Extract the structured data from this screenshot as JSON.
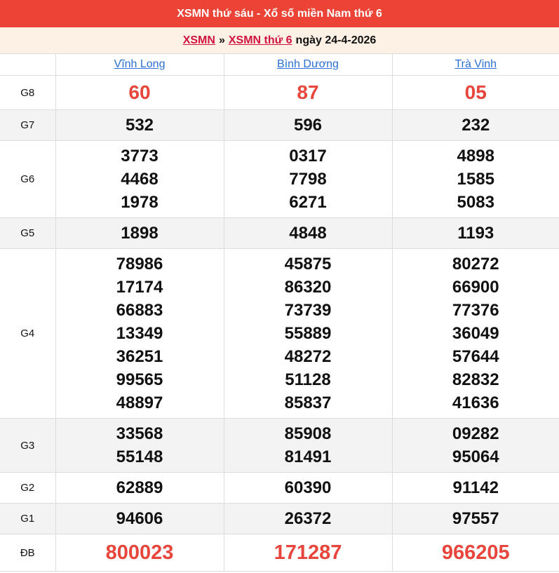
{
  "header": {
    "title": "XSMN thứ sáu - Xổ số miền Nam thứ 6"
  },
  "breadcrumb": {
    "link1": "XSMN",
    "separator": "»",
    "link2": "XSMN thứ 6",
    "date_text": "ngày 24-4-2026"
  },
  "colors": {
    "header_bg": "#eb4335",
    "breadcrumb_bg": "#fdf1e5",
    "prize_red": "#e8453c",
    "link_blue": "#2a6fcf",
    "breadcrumb_link": "#d0123f"
  },
  "provinces": [
    "Vĩnh Long",
    "Bình Dương",
    "Trà Vinh"
  ],
  "prizes": [
    {
      "label": "G8",
      "style": "red",
      "values": [
        [
          "60"
        ],
        [
          "87"
        ],
        [
          "05"
        ]
      ]
    },
    {
      "label": "G7",
      "style": "alt",
      "values": [
        [
          "532"
        ],
        [
          "596"
        ],
        [
          "232"
        ]
      ]
    },
    {
      "label": "G6",
      "style": "",
      "values": [
        [
          "3773",
          "4468",
          "1978"
        ],
        [
          "0317",
          "7798",
          "6271"
        ],
        [
          "4898",
          "1585",
          "5083"
        ]
      ]
    },
    {
      "label": "G5",
      "style": "alt",
      "values": [
        [
          "1898"
        ],
        [
          "4848"
        ],
        [
          "1193"
        ]
      ]
    },
    {
      "label": "G4",
      "style": "",
      "values": [
        [
          "78986",
          "17174",
          "66883",
          "13349",
          "36251",
          "99565",
          "48897"
        ],
        [
          "45875",
          "86320",
          "73739",
          "55889",
          "48272",
          "51128",
          "85837"
        ],
        [
          "80272",
          "66900",
          "77376",
          "36049",
          "57644",
          "82832",
          "41636"
        ]
      ]
    },
    {
      "label": "G3",
      "style": "alt",
      "values": [
        [
          "33568",
          "55148"
        ],
        [
          "85908",
          "81491"
        ],
        [
          "09282",
          "95064"
        ]
      ]
    },
    {
      "label": "G2",
      "style": "",
      "values": [
        [
          "62889"
        ],
        [
          "60390"
        ],
        [
          "91142"
        ]
      ]
    },
    {
      "label": "G1",
      "style": "alt",
      "values": [
        [
          "94606"
        ],
        [
          "26372"
        ],
        [
          "97557"
        ]
      ]
    },
    {
      "label": "ĐB",
      "style": "db",
      "values": [
        [
          "800023"
        ],
        [
          "171287"
        ],
        [
          "966205"
        ]
      ]
    }
  ]
}
